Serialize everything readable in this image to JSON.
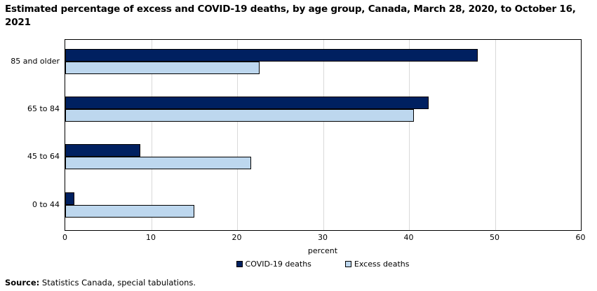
{
  "title": "Estimated percentage of excess and COVID-19 deaths, by age group, Canada, March 28, 2020, to October 16, 2021",
  "chart_data": {
    "type": "bar",
    "orientation": "horizontal",
    "title": "Estimated percentage of excess and COVID-19 deaths, by age group, Canada, March 28, 2020, to October 16, 2021",
    "categories": [
      "85 and older",
      "65 to 84",
      "45 to 64",
      "0 to 44"
    ],
    "series": [
      {
        "name": "COVID-19 deaths",
        "color": "#002060",
        "values": [
          48.0,
          42.3,
          8.7,
          1.1
        ]
      },
      {
        "name": "Excess deaths",
        "color": "#BDD7EE",
        "values": [
          22.6,
          40.6,
          21.6,
          15.0
        ]
      }
    ],
    "xlabel": "percent",
    "ylabel": "",
    "xlim": [
      0,
      60
    ],
    "xticks": [
      0,
      10,
      20,
      30,
      40,
      50,
      60
    ],
    "grid": "vertical",
    "legend_position": "bottom"
  },
  "colors": {
    "bar_border": "#000000",
    "gridline": "#d9d9d9",
    "plot_border": "#000000",
    "text": "#000000",
    "background": "#ffffff"
  },
  "source": {
    "label": "Source:",
    "text": "Statistics Canada, special tabulations."
  }
}
